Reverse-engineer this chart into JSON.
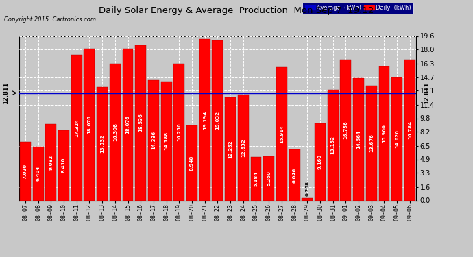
{
  "title": "Daily Solar Energy & Average  Production  Mon Sep 7  19:12",
  "copyright": "Copyright 2015  Cartronics.com",
  "average_value": 12.811,
  "bar_color": "#FF0000",
  "average_line_color": "#0000CD",
  "background_color": "#C8C8C8",
  "plot_bg_color": "#C8C8C8",
  "categories": [
    "08-07",
    "08-08",
    "08-09",
    "08-10",
    "08-11",
    "08-12",
    "08-13",
    "08-14",
    "08-15",
    "08-16",
    "08-17",
    "08-18",
    "08-19",
    "08-20",
    "08-21",
    "08-22",
    "08-23",
    "08-24",
    "08-25",
    "08-26",
    "08-27",
    "08-28",
    "08-29",
    "08-30",
    "08-31",
    "09-01",
    "09-02",
    "09-03",
    "09-04",
    "09-05",
    "09-06"
  ],
  "values": [
    7.02,
    6.404,
    9.082,
    8.41,
    17.324,
    18.076,
    13.532,
    16.308,
    18.076,
    18.536,
    14.336,
    14.188,
    16.256,
    8.948,
    19.194,
    19.032,
    12.252,
    12.632,
    5.184,
    5.26,
    15.914,
    6.046,
    0.268,
    9.16,
    13.152,
    16.756,
    14.564,
    13.676,
    15.96,
    14.626,
    16.784
  ],
  "value_labels": [
    "7.020",
    "6.404",
    "9.082",
    "8.410",
    "17.324",
    "18.076",
    "13.532",
    "16.308",
    "18.076",
    "18.536",
    "14.336",
    "14.188",
    "16.256",
    "8.948",
    "19.194",
    "19.032",
    "12.252",
    "12.632",
    "5.184",
    "5.260",
    "15.914",
    "6.046",
    "0.268",
    "9.160",
    "13.152",
    "16.756",
    "14.564",
    "13.676",
    "15.960",
    "14.626",
    "16.784"
  ],
  "ylim": [
    0.0,
    19.6
  ],
  "yticks": [
    0.0,
    1.6,
    3.3,
    4.9,
    6.5,
    8.2,
    9.8,
    11.4,
    13.1,
    14.7,
    16.3,
    18.0,
    19.6
  ],
  "legend_avg_label": "Average  (kWh)",
  "legend_daily_label": "Daily  (kWh)"
}
